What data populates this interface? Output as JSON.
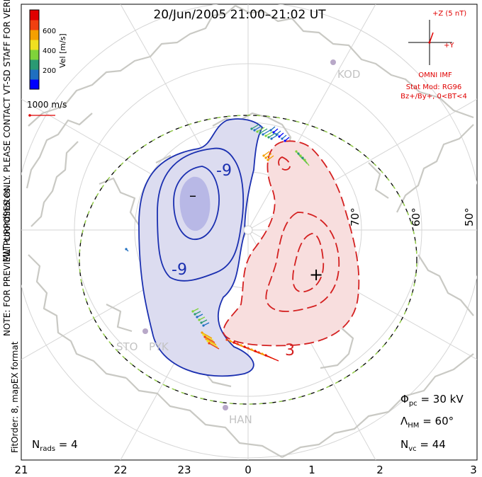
{
  "title": "20/Jun/2005 21:00–21:02 UT",
  "colorbar": {
    "label": "Vel [m/s]",
    "ticks": [
      "600",
      "400",
      "200"
    ],
    "colors": [
      "#0000ff",
      "#1f6fc0",
      "#2a9a73",
      "#7fd33a",
      "#f0e020",
      "#f5a000",
      "#f04010",
      "#e00000"
    ]
  },
  "coord_label": "MLT coordinates",
  "side_note": "NOTE: FOR PREVIEW PURPOSES ONLY. PLEASE CONTACT VT-SD STAFF FOR VERIFICATION.",
  "fit_note": "FitOrder: 8, mapEX format",
  "scale_vector": "1000 m/s",
  "imf": {
    "z_label": "+Z (5 nT)",
    "y_label": "+Y",
    "source": "OMNI IMF",
    "model": "Stat Mod: RG96",
    "condition": "Bz+/By+, 0<BT<4"
  },
  "stations": [
    "KOD",
    "STO",
    "PYK",
    "HAN"
  ],
  "latitude_labels": [
    "70°",
    "60°",
    "50°"
  ],
  "mlt_ticks": [
    "21",
    "22",
    "23",
    "0",
    "1",
    "2",
    "3"
  ],
  "contour_labels": {
    "neg1": "-9",
    "neg2": "-9",
    "neg_center": "–",
    "pos_center": "+",
    "pos1": "3"
  },
  "stats": {
    "phi_pc": "30 kV",
    "lambda_hm": "60°",
    "n_vc": "44",
    "n_rads": "4"
  },
  "colors": {
    "negative": "#1a2fb0",
    "positive": "#d42020",
    "hm_boundary": "#9ad84a",
    "coast": "#c9c9c4",
    "grid": "#d6d6d6"
  }
}
